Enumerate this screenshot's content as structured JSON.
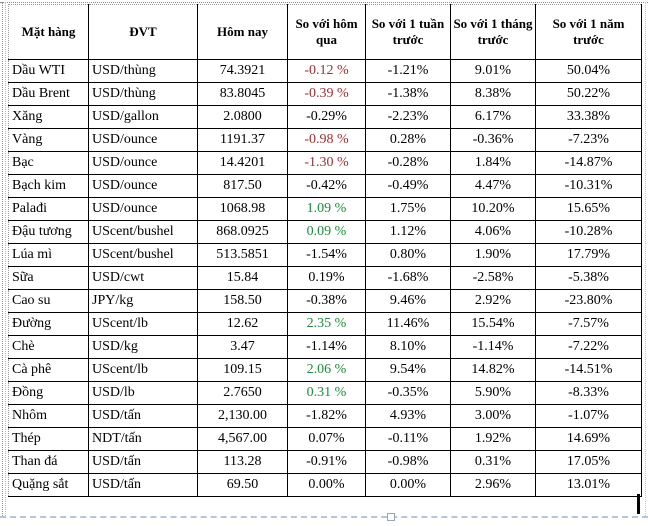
{
  "colors": {
    "negative_red": "#9B2F32",
    "positive_green": "#1E8C3C",
    "text_black": "#000000",
    "selection_dash": "#B3C6DC"
  },
  "table": {
    "headers": [
      {
        "label": "Mặt hàng"
      },
      {
        "label": "ĐVT"
      },
      {
        "label": "Hôm nay"
      },
      {
        "label": "So với hôm qua"
      },
      {
        "label": "So với 1 tuần trước"
      },
      {
        "label": "So với 1 tháng trước"
      },
      {
        "label": "So với 1 năm trước"
      }
    ],
    "rows": [
      {
        "name": "Dầu WTI",
        "unit": "USD/thùng",
        "today": "74.3921",
        "vs_yesterday": "-0.12 %",
        "vs_yesterday_color": "red",
        "vs_week": "-1.21%",
        "vs_month": "9.01%",
        "vs_year": "50.04%"
      },
      {
        "name": "Dầu Brent",
        "unit": "USD/thùng",
        "today": "83.8045",
        "vs_yesterday": "-0.39 %",
        "vs_yesterday_color": "red",
        "vs_week": "-1.38%",
        "vs_month": "8.38%",
        "vs_year": "50.22%"
      },
      {
        "name": "Xăng",
        "unit": "USD/gallon",
        "today": "2.0800",
        "vs_yesterday": "-0.29%",
        "vs_yesterday_color": "black",
        "vs_week": "-2.23%",
        "vs_month": "6.17%",
        "vs_year": "33.38%"
      },
      {
        "name": "Vàng",
        "unit": "USD/ounce",
        "today": "1191.37",
        "vs_yesterday": "-0.98 %",
        "vs_yesterday_color": "red",
        "vs_week": "0.28%",
        "vs_month": "-0.36%",
        "vs_year": "-7.23%"
      },
      {
        "name": "Bạc",
        "unit": "USD/ounce",
        "today": "14.4201",
        "vs_yesterday": "-1.30 %",
        "vs_yesterday_color": "red",
        "vs_week": "-0.28%",
        "vs_month": "1.84%",
        "vs_year": "-14.87%"
      },
      {
        "name": "Bạch kim",
        "unit": "USD/ounce",
        "today": "817.50",
        "vs_yesterday": "-0.42%",
        "vs_yesterday_color": "black",
        "vs_week": "-0.49%",
        "vs_month": "4.47%",
        "vs_year": "-10.31%"
      },
      {
        "name": "Palađi",
        "unit": "USD/ounce",
        "today": "1068.98",
        "vs_yesterday": "1.09 %",
        "vs_yesterday_color": "green",
        "vs_week": "1.75%",
        "vs_month": "10.20%",
        "vs_year": "15.65%"
      },
      {
        "name": "Đậu tương",
        "unit": "UScent/bushel",
        "today": "868.0925",
        "vs_yesterday": "0.09 %",
        "vs_yesterday_color": "green",
        "vs_week": "1.12%",
        "vs_month": "4.06%",
        "vs_year": "-10.28%"
      },
      {
        "name": "Lúa mì",
        "unit": "UScent/bushel",
        "today": "513.5851",
        "vs_yesterday": "-1.54%",
        "vs_yesterday_color": "black",
        "vs_week": "0.80%",
        "vs_month": "1.90%",
        "vs_year": "17.79%"
      },
      {
        "name": "Sữa",
        "unit": "USD/cwt",
        "today": "15.84",
        "vs_yesterday": "0.19%",
        "vs_yesterday_color": "black",
        "vs_week": "-1.68%",
        "vs_month": "-2.58%",
        "vs_year": "-5.38%"
      },
      {
        "name": "Cao su",
        "unit": "JPY/kg",
        "today": "158.50",
        "vs_yesterday": "-0.38%",
        "vs_yesterday_color": "black",
        "vs_week": "9.46%",
        "vs_month": "2.92%",
        "vs_year": "-23.80%"
      },
      {
        "name": "Đường",
        "unit": "UScent/lb",
        "today": "12.62",
        "vs_yesterday": "2.35 %",
        "vs_yesterday_color": "green",
        "vs_week": "11.46%",
        "vs_month": "15.54%",
        "vs_year": "-7.57%"
      },
      {
        "name": "Chè",
        "unit": "USD/kg",
        "today": "3.47",
        "vs_yesterday": "-1.14%",
        "vs_yesterday_color": "black",
        "vs_week": "8.10%",
        "vs_month": "-1.14%",
        "vs_year": "-7.22%"
      },
      {
        "name": "Cà phê",
        "unit": "UScent/lb",
        "today": "109.15",
        "vs_yesterday": "2.06 %",
        "vs_yesterday_color": "green",
        "vs_week": "9.54%",
        "vs_month": "14.82%",
        "vs_year": "-14.51%"
      },
      {
        "name": "Đồng",
        "unit": "USD/lb",
        "today": "2.7650",
        "vs_yesterday": "0.31 %",
        "vs_yesterday_color": "green",
        "vs_week": "-0.35%",
        "vs_month": "5.90%",
        "vs_year": "-8.33%"
      },
      {
        "name": "Nhôm",
        "unit": "USD/tấn",
        "today": "2,130.00",
        "vs_yesterday": "-1.82%",
        "vs_yesterday_color": "black",
        "vs_week": "4.93%",
        "vs_month": "3.00%",
        "vs_year": "-1.07%"
      },
      {
        "name": "Thép",
        "unit": "NDT/tấn",
        "today": "4,567.00",
        "vs_yesterday": "0.07%",
        "vs_yesterday_color": "black",
        "vs_week": "-0.11%",
        "vs_month": "1.92%",
        "vs_year": "14.69%"
      },
      {
        "name": "Than đá",
        "unit": "USD/tấn",
        "today": "113.28",
        "vs_yesterday": "-0.91%",
        "vs_yesterday_color": "black",
        "vs_week": "-0.98%",
        "vs_month": "0.31%",
        "vs_year": "17.05%"
      },
      {
        "name": "Quặng sắt",
        "unit": "USD/tấn",
        "today": "69.50",
        "vs_yesterday": "0.00%",
        "vs_yesterday_color": "black",
        "vs_week": "0.00%",
        "vs_month": "2.96%",
        "vs_year": "13.01%"
      }
    ]
  }
}
